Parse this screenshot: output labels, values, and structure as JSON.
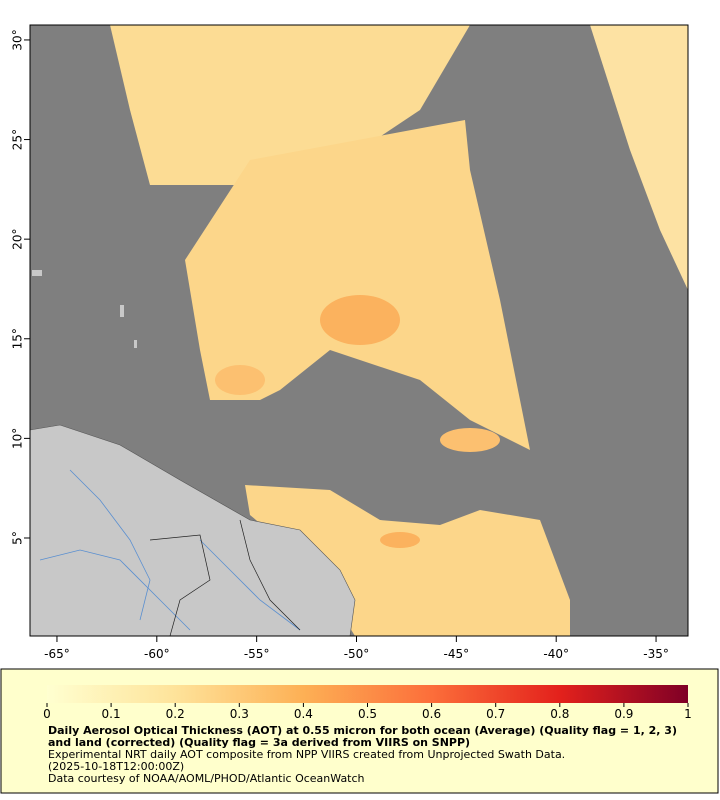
{
  "map": {
    "xlim": [
      -66.35,
      -33.4
    ],
    "ylim": [
      0.08,
      30.75
    ],
    "xticks": [
      {
        "value": -65,
        "label": "-65°"
      },
      {
        "value": -60,
        "label": "-60°"
      },
      {
        "value": -55,
        "label": "-55°"
      },
      {
        "value": -50,
        "label": "-50°"
      },
      {
        "value": -45,
        "label": "-45°"
      },
      {
        "value": -40,
        "label": "-40°"
      },
      {
        "value": -35,
        "label": "-35°"
      }
    ],
    "yticks": [
      {
        "value": 5,
        "label": "5°"
      },
      {
        "value": 10,
        "label": "10°"
      },
      {
        "value": 15,
        "label": "15°"
      },
      {
        "value": 20,
        "label": "20°"
      },
      {
        "value": 25,
        "label": "25°"
      },
      {
        "value": 30,
        "label": "30°"
      }
    ]
  },
  "colorbar": {
    "range": [
      0,
      1
    ],
    "ticks": [
      0,
      0.1,
      0.2,
      0.3,
      0.4,
      0.5,
      0.6,
      0.7,
      0.8,
      0.9,
      1
    ]
  },
  "caption": {
    "title": "Daily Aerosol Optical Thickness (AOT) at 0.55 micron for both ocean (Average) (Quality flag = 1, 2, 3) and land (corrected) (Quality flag = 3a derived from VIIRS on SNPP)",
    "lines": [
      "Experimental NRT daily AOT composite from NPP VIIRS created from Unprojected Swath Data.",
      "(2025-10-18T12:00:00Z)",
      "Data courtesy of NOAA/AOML/PHOD/Atlantic OceanWatch"
    ]
  }
}
